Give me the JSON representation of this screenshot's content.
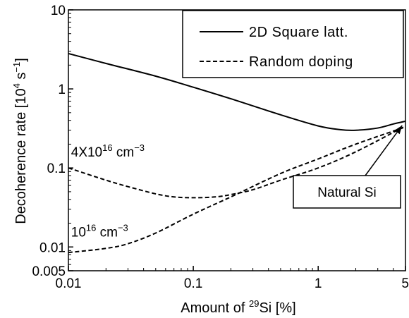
{
  "chart_data": {
    "type": "line",
    "title": "",
    "xlabel": {
      "pre": "Amount of ",
      "sup": "29",
      "post": "Si  [%]"
    },
    "ylabel": {
      "pre": "Decoherence rate [10",
      "sup1": "4",
      "mid": " s",
      "sup2": "−1",
      "post": "]"
    },
    "x_scale": "log",
    "y_scale": "log",
    "xlim": [
      0.01,
      5
    ],
    "ylim": [
      0.005,
      10
    ],
    "x_ticks": [
      {
        "value": 0.01,
        "label": "0.01"
      },
      {
        "value": 0.1,
        "label": "0.1"
      },
      {
        "value": 1,
        "label": "1"
      },
      {
        "value": 5,
        "label": "5"
      }
    ],
    "y_ticks": [
      {
        "value": 0.005,
        "label": "0.005"
      },
      {
        "value": 0.01,
        "label": "0.01"
      },
      {
        "value": 0.1,
        "label": "0.1"
      },
      {
        "value": 1,
        "label": "1"
      },
      {
        "value": 10,
        "label": "10"
      }
    ],
    "grid": false,
    "legend_position": "top-right",
    "series": [
      {
        "name": "2D Square latt.",
        "style": "solid",
        "x": [
          0.01,
          0.02,
          0.05,
          0.1,
          0.2,
          0.5,
          1,
          1.5,
          2,
          3,
          4,
          5
        ],
        "y": [
          2.8,
          2.1,
          1.45,
          1.05,
          0.75,
          0.47,
          0.34,
          0.305,
          0.3,
          0.32,
          0.36,
          0.39
        ]
      },
      {
        "name": "Random doping",
        "legend": true,
        "style": "dashed",
        "x": [
          0.01,
          0.02,
          0.03,
          0.05,
          0.07,
          0.1,
          0.15,
          0.2,
          0.3,
          0.5,
          1,
          2,
          5
        ],
        "y": [
          0.1,
          0.07,
          0.058,
          0.047,
          0.043,
          0.042,
          0.043,
          0.046,
          0.053,
          0.07,
          0.1,
          0.16,
          0.34
        ]
      },
      {
        "name": "Random doping",
        "legend": false,
        "style": "dashed",
        "x": [
          0.01,
          0.02,
          0.03,
          0.05,
          0.1,
          0.2,
          0.5,
          1,
          2,
          5
        ],
        "y": [
          0.0085,
          0.0096,
          0.011,
          0.015,
          0.026,
          0.043,
          0.085,
          0.13,
          0.2,
          0.33
        ]
      }
    ],
    "annotations": [
      {
        "id": "conc-high",
        "pre": "4X10",
        "sup": "16",
        "mid": " cm",
        "sup2": "−3",
        "x": 0.0105,
        "y": 0.14
      },
      {
        "id": "conc-low",
        "pre": "10",
        "sup": "16",
        "mid": " cm",
        "sup2": "−3",
        "x": 0.0105,
        "y": 0.0135
      }
    ],
    "callout": {
      "text": "Natural Si",
      "arrow_to": {
        "x": 4.7,
        "y": 0.345
      }
    }
  }
}
